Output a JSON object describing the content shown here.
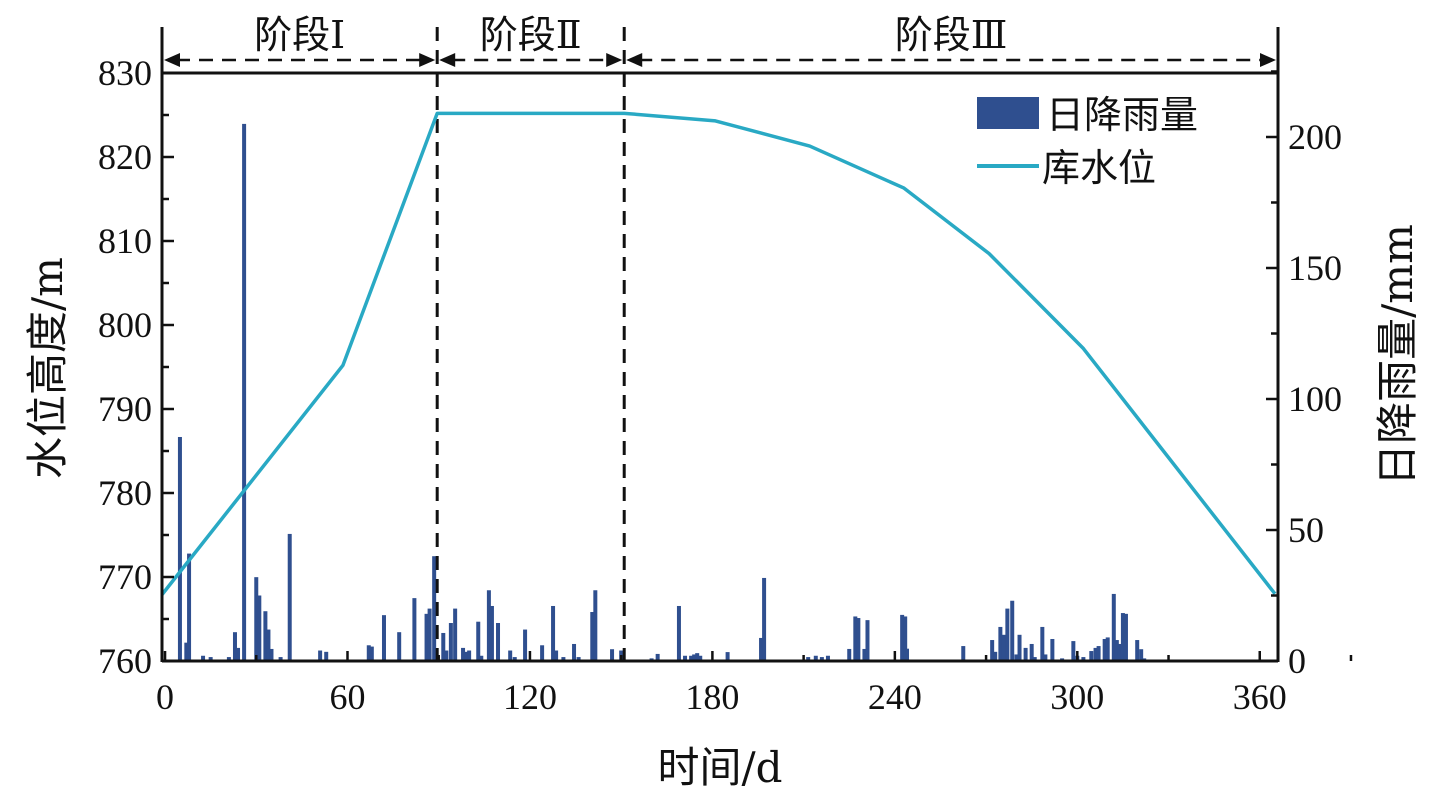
{
  "chart_data": {
    "type": "bar+line",
    "title": "",
    "xlabel": "时间/d",
    "ylabel_left": "水位高度/m",
    "ylabel_right": "日降雨量/mm",
    "xlim": [
      -1,
      366
    ],
    "ylim_left": [
      760,
      830
    ],
    "ylim_right": [
      0,
      224
    ],
    "x_ticks": [
      0,
      60,
      120,
      180,
      240,
      300,
      360
    ],
    "y_left_ticks": [
      760,
      770,
      780,
      790,
      800,
      810,
      820,
      830
    ],
    "y_right_ticks": [
      0,
      50,
      100,
      150,
      200
    ],
    "grid": false,
    "legend_position": "top-right",
    "stages": [
      {
        "label": "阶段Ⅰ",
        "start": -1,
        "end": 89.5
      },
      {
        "label": "阶段Ⅱ",
        "start": 89.5,
        "end": 151
      },
      {
        "label": "阶段Ⅲ",
        "start": 151,
        "end": 366
      }
    ],
    "series": [
      {
        "name": "日降雨量",
        "type": "bar",
        "axis": "right",
        "color": "#2f4f8f",
        "points": [
          [
            4.9,
            85.5
          ],
          [
            7,
            7
          ],
          [
            7.9,
            41
          ],
          [
            12.5,
            2
          ],
          [
            15,
            1.5
          ],
          [
            21,
            1.5
          ],
          [
            23,
            11
          ],
          [
            24,
            5
          ],
          [
            26,
            205
          ],
          [
            30,
            32
          ],
          [
            31,
            25
          ],
          [
            33,
            19
          ],
          [
            34,
            12
          ],
          [
            35,
            4.6
          ],
          [
            38,
            1.5
          ],
          [
            41,
            48.5
          ],
          [
            51,
            4
          ],
          [
            53,
            3.5
          ],
          [
            67,
            6
          ],
          [
            68,
            5.5
          ],
          [
            72,
            17.5
          ],
          [
            77,
            11
          ],
          [
            82,
            24
          ],
          [
            86,
            18
          ],
          [
            87,
            20
          ],
          [
            88.5,
            40
          ],
          [
            91.5,
            10.7
          ],
          [
            92.5,
            4
          ],
          [
            94,
            14.5
          ],
          [
            95.4,
            20
          ],
          [
            98,
            5
          ],
          [
            99,
            3.5
          ],
          [
            100,
            4
          ],
          [
            103,
            15
          ],
          [
            104,
            2
          ],
          [
            106.5,
            27
          ],
          [
            107.5,
            21
          ],
          [
            109.5,
            14.5
          ],
          [
            113.5,
            4
          ],
          [
            115,
            1.5
          ],
          [
            118.4,
            12
          ],
          [
            124,
            6
          ],
          [
            127.6,
            21
          ],
          [
            128.6,
            4
          ],
          [
            131,
            1.5
          ],
          [
            134.5,
            6.5
          ],
          [
            136,
            1.5
          ],
          [
            140.5,
            18.7
          ],
          [
            141.5,
            27
          ],
          [
            147,
            4.5
          ],
          [
            150,
            4
          ],
          [
            160,
            1
          ],
          [
            162,
            2.7
          ],
          [
            169,
            21
          ],
          [
            171,
            2
          ],
          [
            173,
            2
          ],
          [
            174,
            2.5
          ],
          [
            175,
            3
          ],
          [
            176,
            2
          ],
          [
            185,
            3.4
          ],
          [
            196,
            8.8
          ],
          [
            197,
            31.7
          ],
          [
            211.5,
            1.5
          ],
          [
            214,
            2
          ],
          [
            216,
            1.5
          ],
          [
            218,
            2
          ],
          [
            225,
            4.6
          ],
          [
            227,
            17
          ],
          [
            228,
            16.4
          ],
          [
            230,
            4.6
          ],
          [
            231,
            15.6
          ],
          [
            242.4,
            17.6
          ],
          [
            243.4,
            17
          ],
          [
            244,
            4.7
          ],
          [
            262.5,
            5.7
          ],
          [
            272,
            8
          ],
          [
            273,
            3.5
          ],
          [
            274.7,
            13
          ],
          [
            275.8,
            10
          ],
          [
            277,
            20
          ],
          [
            278.6,
            23
          ],
          [
            280,
            2.5
          ],
          [
            281,
            10
          ],
          [
            283,
            5
          ],
          [
            285,
            6.5
          ],
          [
            286,
            1.5
          ],
          [
            288.5,
            13
          ],
          [
            289.5,
            2.5
          ],
          [
            291.8,
            8.4
          ],
          [
            295,
            1
          ],
          [
            298.7,
            7.6
          ],
          [
            300,
            2
          ],
          [
            302,
            1.5
          ],
          [
            304.6,
            3.8
          ],
          [
            306,
            5
          ],
          [
            307,
            5.7
          ],
          [
            309,
            8.4
          ],
          [
            310,
            9
          ],
          [
            312,
            25.6
          ],
          [
            313,
            8
          ],
          [
            314,
            6.5
          ],
          [
            315,
            18.3
          ],
          [
            316,
            18
          ],
          [
            319.7,
            8
          ],
          [
            321,
            4.5
          ],
          [
            322,
            1
          ]
        ]
      },
      {
        "name": "库水位",
        "type": "line",
        "axis": "left",
        "color": "#29a9c4",
        "points": [
          [
            -1,
            767.9
          ],
          [
            58.5,
            795.2
          ],
          [
            89.5,
            825.2
          ],
          [
            151,
            825.2
          ],
          [
            181,
            824.3
          ],
          [
            212,
            821.3
          ],
          [
            243,
            816.3
          ],
          [
            271,
            808.5
          ],
          [
            302,
            797.2
          ],
          [
            365,
            768
          ]
        ]
      }
    ]
  }
}
